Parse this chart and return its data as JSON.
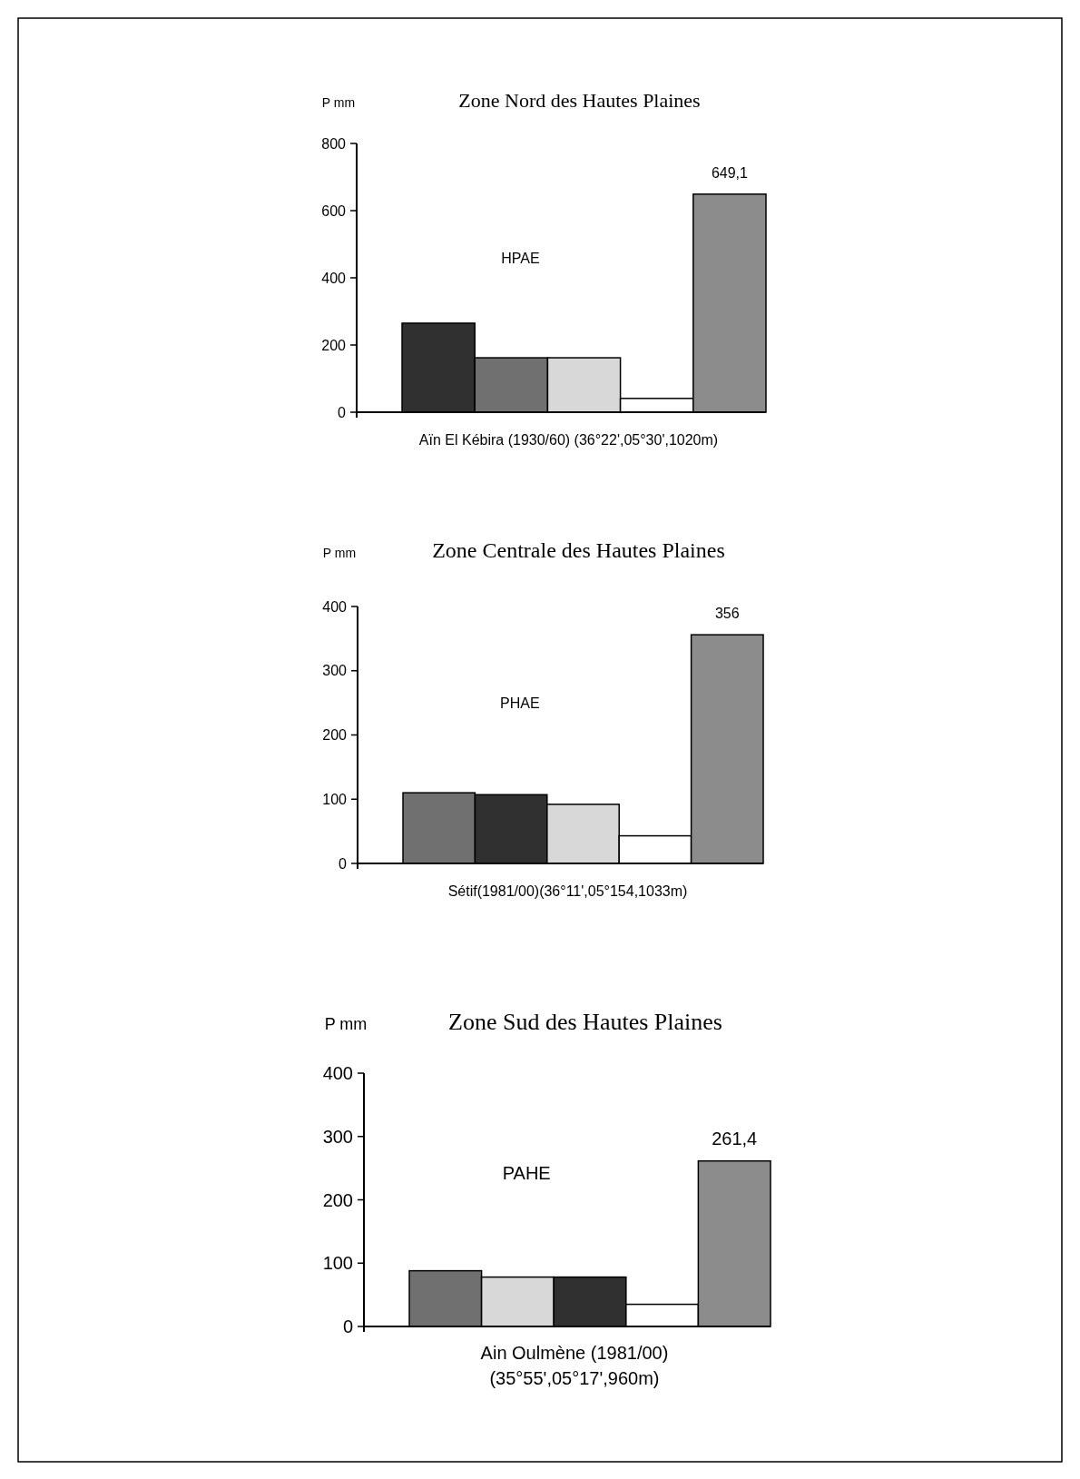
{
  "chart_data": [
    {
      "type": "bar",
      "title": "Zone Nord des Hautes Plaines",
      "ylabel": "P mm",
      "xlabel": "Aïn El Kébira (1930/60) (36°22',05°30',1020m)",
      "categories": [
        null,
        null,
        null,
        null,
        null
      ],
      "values": [
        265,
        162,
        162,
        41,
        649.1
      ],
      "colors": [
        "#303030",
        "#707070",
        "#d8d8d8",
        "#ffffff",
        "#8c8c8c"
      ],
      "value_labels": [
        null,
        null,
        null,
        null,
        "649,1"
      ],
      "ylim": [
        0,
        800
      ],
      "yticks": [
        0,
        200,
        400,
        600,
        800
      ],
      "annotations": [
        "HPAE"
      ]
    },
    {
      "type": "bar",
      "title": "Zone Centrale des Hautes Plaines",
      "ylabel": "P mm",
      "xlabel": "Sétif(1981/00)(36°11',05°154,1033m)",
      "categories": [
        null,
        null,
        null,
        null,
        null
      ],
      "values": [
        110,
        107,
        92,
        43,
        356
      ],
      "colors": [
        "#707070",
        "#303030",
        "#d8d8d8",
        "#ffffff",
        "#8c8c8c"
      ],
      "value_labels": [
        null,
        null,
        null,
        null,
        "356"
      ],
      "ylim": [
        0,
        400
      ],
      "yticks": [
        0,
        100,
        200,
        300,
        400
      ],
      "annotations": [
        "PHAE"
      ]
    },
    {
      "type": "bar",
      "title": "Zone Sud des Hautes Plaines",
      "ylabel": "P mm",
      "xlabel": "Ain Oulmène (1981/00)\n(35°55',05°17',960m)",
      "categories": [
        null,
        null,
        null,
        null,
        null
      ],
      "values": [
        88,
        78,
        78,
        35,
        261.4
      ],
      "colors": [
        "#707070",
        "#d8d8d8",
        "#303030",
        "#ffffff",
        "#8c8c8c"
      ],
      "value_labels": [
        null,
        null,
        null,
        null,
        "261,4"
      ],
      "ylim": [
        0,
        400
      ],
      "yticks": [
        0,
        100,
        200,
        300,
        400
      ],
      "annotations": [
        "PAHE"
      ]
    }
  ]
}
